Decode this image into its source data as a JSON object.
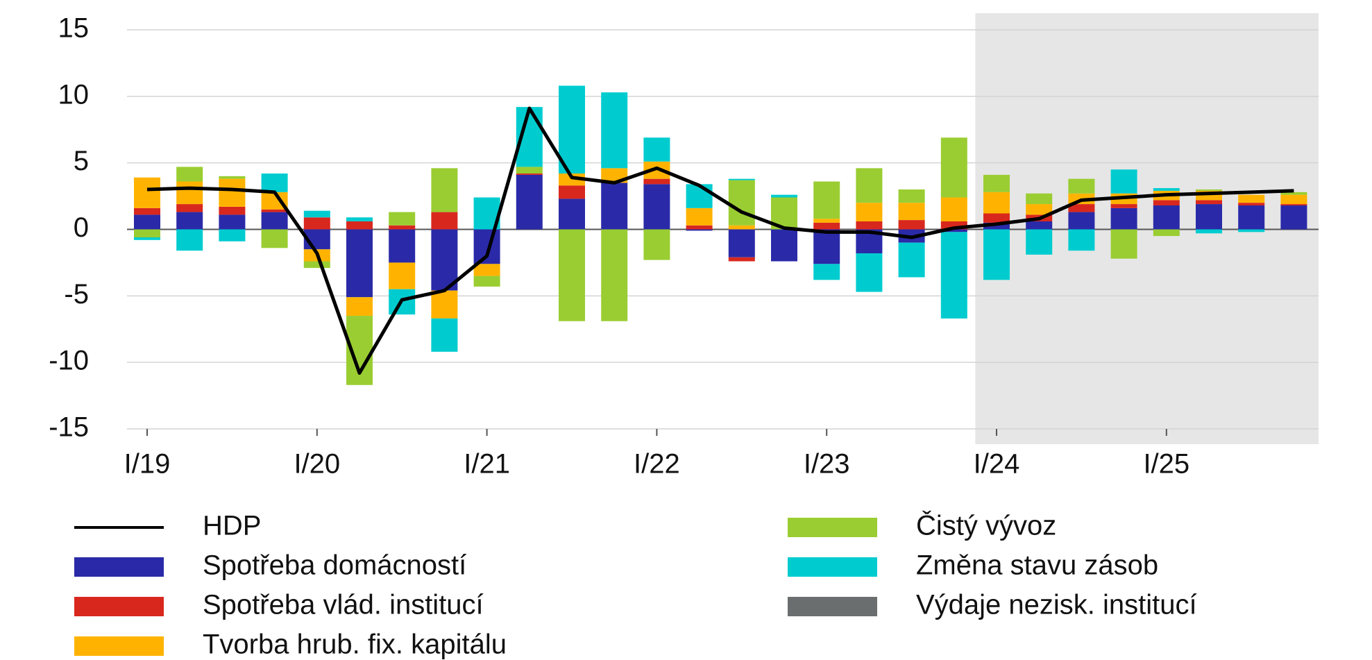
{
  "chart_data": {
    "type": "bar",
    "stacked": true,
    "categories": [
      "I/19",
      null,
      null,
      null,
      "I/20",
      null,
      null,
      null,
      "I/21",
      null,
      null,
      null,
      "I/22",
      null,
      null,
      null,
      "I/23",
      null,
      null,
      null,
      "I/24",
      null,
      null,
      null,
      "I/25",
      null,
      null,
      null
    ],
    "series": [
      {
        "name": "Spotřeba domácností",
        "color": "#2a2aa8",
        "values": [
          1.1,
          1.3,
          1.1,
          1.3,
          -1.5,
          -5.1,
          -2.5,
          -4.6,
          -2.6,
          4.1,
          2.3,
          3.5,
          3.4,
          -0.1,
          -2.1,
          -2.4,
          -2.6,
          -1.8,
          -1.0,
          -0.2,
          0.5,
          0.6,
          1.3,
          1.6,
          1.8,
          1.9,
          1.8,
          1.8
        ]
      },
      {
        "name": "Spotřeba vlád. institucí",
        "color": "#d8281e",
        "values": [
          0.5,
          0.6,
          0.6,
          0.2,
          0.9,
          0.6,
          0.3,
          1.3,
          0.0,
          0.1,
          1.0,
          0.0,
          0.4,
          0.3,
          -0.3,
          0.0,
          0.5,
          0.6,
          0.7,
          0.6,
          0.7,
          0.5,
          0.6,
          0.3,
          0.4,
          0.3,
          0.2,
          0.1
        ]
      },
      {
        "name": "Tvorba hrub. fix. kapitálu",
        "color": "#ffb300",
        "values": [
          2.3,
          1.7,
          2.1,
          1.3,
          -0.9,
          -1.4,
          -2.0,
          -2.1,
          -0.9,
          0.0,
          0.9,
          1.1,
          1.3,
          1.3,
          0.3,
          0.0,
          0.3,
          1.4,
          1.3,
          1.8,
          1.6,
          0.8,
          0.8,
          0.8,
          0.7,
          0.7,
          0.6,
          0.7
        ]
      },
      {
        "name": "Čistý vývoz",
        "color": "#9acd32",
        "values": [
          -0.6,
          1.1,
          0.2,
          -1.4,
          -0.5,
          -5.2,
          1.0,
          3.3,
          -0.8,
          0.5,
          -6.9,
          -6.9,
          -2.3,
          0.0,
          3.4,
          2.4,
          2.8,
          2.6,
          1.0,
          4.5,
          1.3,
          0.8,
          1.1,
          -2.2,
          -0.5,
          0.1,
          0.0,
          0.2
        ]
      },
      {
        "name": "Změna stavu zásob",
        "color": "#00ccd0",
        "values": [
          -0.2,
          -1.6,
          -0.9,
          1.4,
          0.5,
          0.3,
          -1.9,
          -2.5,
          2.4,
          4.5,
          6.6,
          5.7,
          1.8,
          1.8,
          0.1,
          0.2,
          -1.2,
          -2.9,
          -2.6,
          -6.5,
          -3.8,
          -1.9,
          -1.6,
          1.8,
          0.2,
          -0.3,
          -0.2,
          0.0
        ]
      },
      {
        "name": "Výdaje nezisk. institucí",
        "color": "#6b6e6e",
        "values": [
          0,
          0,
          0,
          0,
          0,
          0,
          0,
          0,
          0,
          0,
          0,
          0,
          0,
          0,
          0,
          0,
          0,
          0,
          0,
          0,
          0,
          0,
          0,
          0,
          0,
          0,
          0,
          0
        ]
      }
    ],
    "line": {
      "name": "HDP",
      "color": "#000000",
      "values": [
        3.0,
        3.1,
        3.0,
        2.8,
        -1.8,
        -10.8,
        -5.3,
        -4.6,
        -2.0,
        9.1,
        3.9,
        3.5,
        4.6,
        3.3,
        1.3,
        0.1,
        -0.2,
        -0.2,
        -0.6,
        0.1,
        0.4,
        0.8,
        2.2,
        2.4,
        2.6,
        2.7,
        2.8,
        2.9
      ]
    },
    "shade_start": 20,
    "shade_color": "#e6e6e6",
    "ylim": [
      -15,
      15
    ],
    "yticks": [
      -15,
      -10,
      -5,
      0,
      5,
      10,
      15
    ],
    "grid": true
  }
}
